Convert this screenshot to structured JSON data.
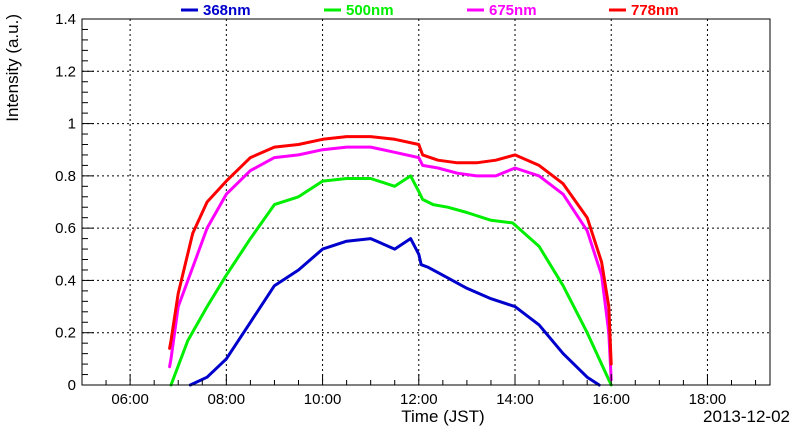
{
  "chart_data": {
    "type": "line",
    "title": "",
    "xlabel": "Time (JST)",
    "ylabel": "Intensity (a.u.)",
    "date_label": "2013-12-02",
    "x_unit": "hours",
    "xlim": [
      5.0,
      19.3
    ],
    "ylim": [
      0,
      1.4
    ],
    "x_ticks": [
      {
        "value": 6,
        "label": "06:00"
      },
      {
        "value": 8,
        "label": "08:00"
      },
      {
        "value": 10,
        "label": "10:00"
      },
      {
        "value": 12,
        "label": "12:00"
      },
      {
        "value": 14,
        "label": "14:00"
      },
      {
        "value": 16,
        "label": "16:00"
      },
      {
        "value": 18,
        "label": "18:00"
      }
    ],
    "y_ticks": [
      {
        "value": 0,
        "label": "0"
      },
      {
        "value": 0.2,
        "label": "0.2"
      },
      {
        "value": 0.4,
        "label": "0.4"
      },
      {
        "value": 0.6,
        "label": "0.6"
      },
      {
        "value": 0.8,
        "label": "0.8"
      },
      {
        "value": 1.0,
        "label": "1"
      },
      {
        "value": 1.2,
        "label": "1.2"
      },
      {
        "value": 1.4,
        "label": "1.4"
      }
    ],
    "grid": true,
    "legend_position": "top",
    "series": [
      {
        "name": "368nm",
        "color": "#0000cc",
        "x": [
          7.25,
          7.6,
          8.0,
          8.5,
          9.0,
          9.5,
          10.0,
          10.5,
          11.0,
          11.5,
          11.83,
          12.0,
          12.05,
          12.2,
          12.5,
          13.0,
          13.5,
          14.0,
          14.5,
          15.0,
          15.5,
          15.75
        ],
        "y": [
          0.0,
          0.03,
          0.1,
          0.24,
          0.38,
          0.44,
          0.52,
          0.55,
          0.56,
          0.52,
          0.56,
          0.5,
          0.46,
          0.45,
          0.42,
          0.37,
          0.33,
          0.3,
          0.23,
          0.12,
          0.03,
          0.0
        ]
      },
      {
        "name": "500nm",
        "color": "#00ee00",
        "x": [
          6.85,
          7.2,
          7.6,
          8.0,
          8.5,
          9.0,
          9.5,
          10.0,
          10.5,
          11.0,
          11.5,
          11.83,
          12.0,
          12.08,
          12.3,
          12.6,
          13.0,
          13.5,
          13.95,
          14.5,
          15.0,
          15.5,
          15.8,
          16.0
        ],
        "y": [
          0.0,
          0.17,
          0.3,
          0.42,
          0.56,
          0.69,
          0.72,
          0.78,
          0.79,
          0.79,
          0.76,
          0.8,
          0.74,
          0.71,
          0.69,
          0.68,
          0.66,
          0.63,
          0.62,
          0.53,
          0.38,
          0.2,
          0.08,
          0.0
        ]
      },
      {
        "name": "675nm",
        "color": "#ff00ff",
        "x": [
          6.82,
          6.85,
          7.0,
          7.3,
          7.6,
          8.0,
          8.5,
          9.0,
          9.5,
          10.0,
          10.5,
          11.0,
          11.5,
          12.0,
          12.08,
          12.4,
          12.8,
          13.2,
          13.6,
          14.0,
          14.5,
          15.0,
          15.5,
          15.8,
          15.95,
          16.0
        ],
        "y": [
          0.07,
          0.1,
          0.3,
          0.45,
          0.6,
          0.73,
          0.82,
          0.87,
          0.88,
          0.9,
          0.91,
          0.91,
          0.89,
          0.87,
          0.84,
          0.83,
          0.81,
          0.8,
          0.8,
          0.83,
          0.8,
          0.73,
          0.59,
          0.42,
          0.2,
          0.02
        ]
      },
      {
        "name": "778nm",
        "color": "#ff0000",
        "x": [
          6.82,
          6.85,
          7.0,
          7.3,
          7.6,
          8.0,
          8.5,
          9.0,
          9.5,
          10.0,
          10.5,
          11.0,
          11.5,
          12.0,
          12.08,
          12.4,
          12.8,
          13.2,
          13.6,
          14.0,
          14.5,
          15.0,
          15.5,
          15.8,
          15.95,
          16.0
        ],
        "y": [
          0.14,
          0.17,
          0.35,
          0.58,
          0.7,
          0.78,
          0.87,
          0.91,
          0.92,
          0.94,
          0.95,
          0.95,
          0.94,
          0.92,
          0.88,
          0.86,
          0.85,
          0.85,
          0.86,
          0.88,
          0.84,
          0.77,
          0.64,
          0.47,
          0.3,
          0.08
        ]
      }
    ]
  }
}
